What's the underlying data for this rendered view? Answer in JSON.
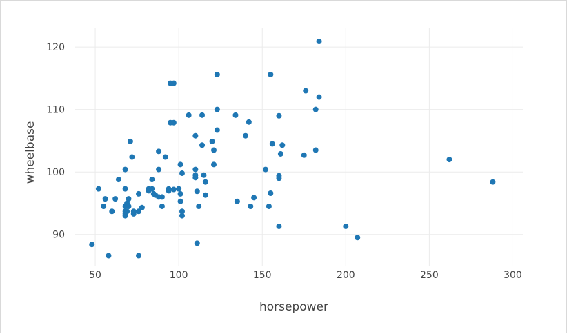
{
  "chart_data": {
    "type": "scatter",
    "title": "",
    "xlabel": "horsepower",
    "ylabel": "wheelbase",
    "xlim": [
      38,
      306
    ],
    "ylim": [
      85,
      123
    ],
    "x_ticks": [
      50,
      100,
      150,
      200,
      250,
      300
    ],
    "y_ticks": [
      90,
      100,
      110,
      120
    ],
    "grid": true,
    "legend": "none",
    "marker_color": "#1f77b4",
    "points": [
      [
        48,
        88.4
      ],
      [
        52,
        97.3
      ],
      [
        55,
        94.5
      ],
      [
        56,
        95.7
      ],
      [
        58,
        86.6
      ],
      [
        60,
        93.7
      ],
      [
        62,
        95.7
      ],
      [
        64,
        98.8
      ],
      [
        68,
        93.0
      ],
      [
        68,
        93.3
      ],
      [
        68,
        93.7
      ],
      [
        68,
        94.5
      ],
      [
        68,
        97.3
      ],
      [
        68,
        100.4
      ],
      [
        69,
        93.7
      ],
      [
        69,
        95.0
      ],
      [
        70,
        94.5
      ],
      [
        70,
        95.7
      ],
      [
        71,
        104.9
      ],
      [
        72,
        102.4
      ],
      [
        73,
        93.3
      ],
      [
        73,
        93.7
      ],
      [
        76,
        96.5
      ],
      [
        76,
        86.6
      ],
      [
        76,
        93.7
      ],
      [
        78,
        94.3
      ],
      [
        82,
        97.0
      ],
      [
        82,
        97.3
      ],
      [
        84,
        97.3
      ],
      [
        84,
        98.8
      ],
      [
        85,
        96.5
      ],
      [
        86,
        96.3
      ],
      [
        88,
        103.3
      ],
      [
        88,
        96.0
      ],
      [
        88,
        100.4
      ],
      [
        90,
        96.0
      ],
      [
        90,
        94.5
      ],
      [
        92,
        102.4
      ],
      [
        94,
        97.3
      ],
      [
        94,
        97.0
      ],
      [
        95,
        114.2
      ],
      [
        95,
        107.9
      ],
      [
        97,
        114.2
      ],
      [
        97,
        107.9
      ],
      [
        97,
        97.2
      ],
      [
        100,
        97.3
      ],
      [
        101,
        95.3
      ],
      [
        101,
        101.2
      ],
      [
        101,
        96.5
      ],
      [
        102,
        99.8
      ],
      [
        102,
        93.7
      ],
      [
        102,
        93.0
      ],
      [
        106,
        109.1
      ],
      [
        110,
        105.8
      ],
      [
        110,
        99.5
      ],
      [
        110,
        100.4
      ],
      [
        110,
        99.1
      ],
      [
        111,
        88.6
      ],
      [
        111,
        96.9
      ],
      [
        112,
        94.5
      ],
      [
        114,
        104.3
      ],
      [
        114,
        109.1
      ],
      [
        115,
        99.5
      ],
      [
        116,
        98.4
      ],
      [
        116,
        96.3
      ],
      [
        120,
        104.9
      ],
      [
        121,
        103.5
      ],
      [
        121,
        101.2
      ],
      [
        123,
        115.6
      ],
      [
        123,
        110.0
      ],
      [
        123,
        106.7
      ],
      [
        134,
        109.1
      ],
      [
        135,
        95.3
      ],
      [
        140,
        105.8
      ],
      [
        142,
        108.0
      ],
      [
        143,
        94.5
      ],
      [
        145,
        95.9
      ],
      [
        152,
        100.4
      ],
      [
        154,
        94.5
      ],
      [
        155,
        96.6
      ],
      [
        155,
        115.6
      ],
      [
        156,
        104.5
      ],
      [
        160,
        109.0
      ],
      [
        160,
        99.4
      ],
      [
        160,
        99.0
      ],
      [
        160,
        91.3
      ],
      [
        161,
        102.9
      ],
      [
        162,
        104.3
      ],
      [
        175,
        102.7
      ],
      [
        176,
        113.0
      ],
      [
        182,
        110.0
      ],
      [
        182,
        103.5
      ],
      [
        184,
        112.0
      ],
      [
        184,
        120.9
      ],
      [
        200,
        91.3
      ],
      [
        207,
        89.5
      ],
      [
        262,
        102.0
      ],
      [
        288,
        98.4
      ]
    ]
  }
}
